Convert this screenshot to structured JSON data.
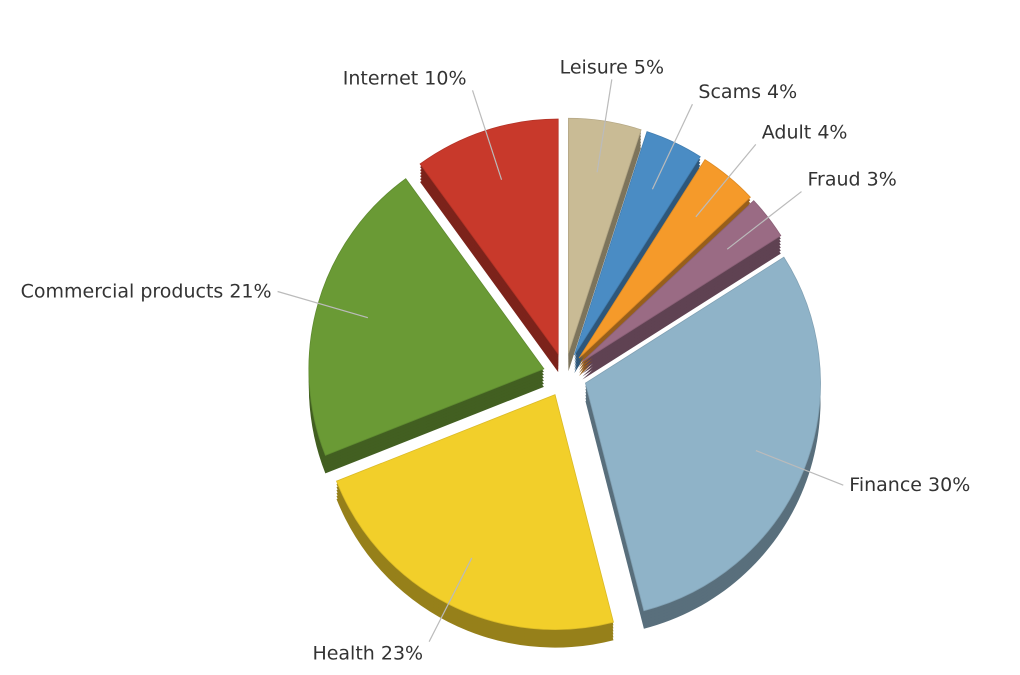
{
  "chart_data": {
    "type": "pie",
    "categories": [
      "Finance",
      "Health",
      "Commercial products",
      "Internet",
      "Leisure",
      "Scams",
      "Adult",
      "Fraud"
    ],
    "values": [
      30,
      23,
      21,
      10,
      5,
      4,
      4,
      3
    ],
    "value_labels": [
      "30%",
      "23%",
      "21%",
      "10%",
      "5%",
      "4%",
      "4%",
      "3%"
    ],
    "colors": [
      "#8fb3c8",
      "#f2cf2a",
      "#6a9a35",
      "#c8392b",
      "#c9bb95",
      "#4a8cc4",
      "#f59a2a",
      "#9a6b84"
    ]
  }
}
